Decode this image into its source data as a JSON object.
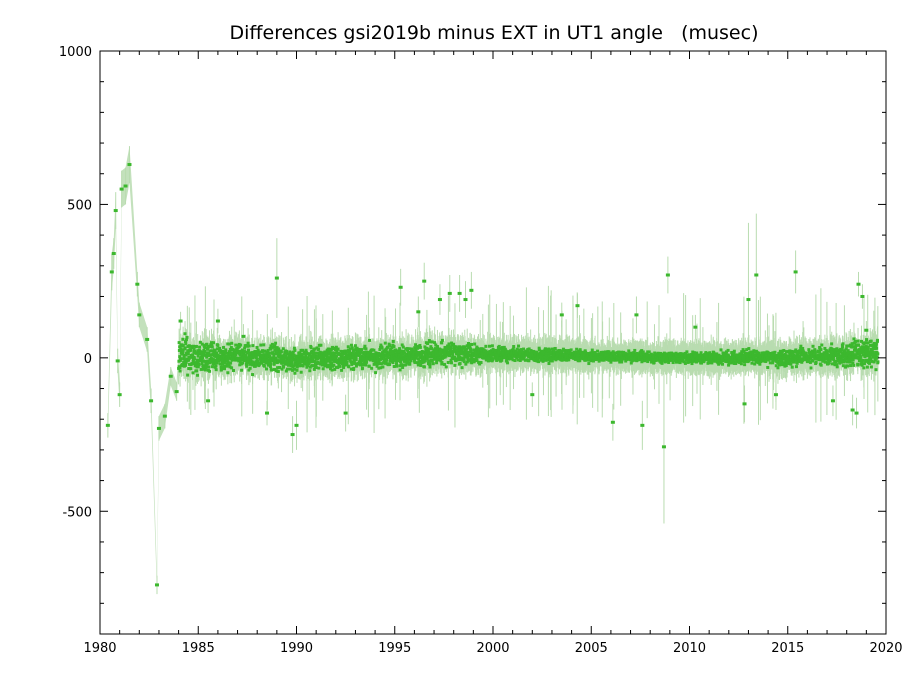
{
  "chart_data": {
    "type": "scatter",
    "title": "Differences gsi2019b minus EXT in UT1 angle   (musec)",
    "xlabel": "",
    "ylabel": "",
    "xlim": [
      1980,
      2020
    ],
    "ylim": [
      -900,
      1000
    ],
    "x_ticks": [
      1980,
      1985,
      1990,
      1995,
      2000,
      2005,
      2010,
      2015,
      2020
    ],
    "y_ticks": [
      -500,
      0,
      500,
      1000
    ],
    "grid": false,
    "colors": {
      "points": "#3cb82e",
      "error_bars": "#b9dcb0",
      "axes": "#000000"
    },
    "series": [
      {
        "values": [
          {
            "x": 1980.4,
            "y": -220,
            "err": 40
          },
          {
            "x": 1980.6,
            "y": 280,
            "err": 60
          },
          {
            "x": 1980.7,
            "y": 340,
            "err": 50
          },
          {
            "x": 1980.8,
            "y": 480,
            "err": 60
          },
          {
            "x": 1980.9,
            "y": -10,
            "err": 40
          },
          {
            "x": 1981.0,
            "y": -120,
            "err": 40
          },
          {
            "x": 1981.1,
            "y": 550,
            "err": 60
          },
          {
            "x": 1981.3,
            "y": 560,
            "err": 60
          },
          {
            "x": 1981.5,
            "y": 630,
            "err": 60
          },
          {
            "x": 1981.9,
            "y": 240,
            "err": 40
          },
          {
            "x": 1982.0,
            "y": 140,
            "err": 40
          },
          {
            "x": 1982.4,
            "y": 60,
            "err": 40
          },
          {
            "x": 1982.6,
            "y": -140,
            "err": 40
          },
          {
            "x": 1982.9,
            "y": -740,
            "err": 30
          },
          {
            "x": 1983.0,
            "y": -230,
            "err": 40
          },
          {
            "x": 1983.3,
            "y": -190,
            "err": 40
          },
          {
            "x": 1983.6,
            "y": -60,
            "err": 30
          },
          {
            "x": 1983.9,
            "y": -110,
            "err": 30
          },
          {
            "x": 1984.1,
            "y": 120,
            "err": 30
          },
          {
            "x": 1985.5,
            "y": -140,
            "err": 40
          },
          {
            "x": 1986.0,
            "y": 120,
            "err": 40
          },
          {
            "x": 1987.3,
            "y": 70,
            "err": 40
          },
          {
            "x": 1988.5,
            "y": -180,
            "err": 40
          },
          {
            "x": 1989.0,
            "y": 260,
            "err": 130
          },
          {
            "x": 1989.8,
            "y": -250,
            "err": 60
          },
          {
            "x": 1990.0,
            "y": -220,
            "err": 80
          },
          {
            "x": 1992.5,
            "y": -180,
            "err": 60
          },
          {
            "x": 1995.3,
            "y": 230,
            "err": 60
          },
          {
            "x": 1996.2,
            "y": 150,
            "err": 50
          },
          {
            "x": 1996.5,
            "y": 250,
            "err": 60
          },
          {
            "x": 1997.3,
            "y": 190,
            "err": 50
          },
          {
            "x": 1997.8,
            "y": 210,
            "err": 60
          },
          {
            "x": 1998.3,
            "y": 210,
            "err": 60
          },
          {
            "x": 1998.6,
            "y": 190,
            "err": 60
          },
          {
            "x": 1998.9,
            "y": 220,
            "err": 60
          },
          {
            "x": 2002.0,
            "y": -120,
            "err": 40
          },
          {
            "x": 2003.5,
            "y": 140,
            "err": 40
          },
          {
            "x": 2004.3,
            "y": 170,
            "err": 40
          },
          {
            "x": 2006.1,
            "y": -210,
            "err": 60
          },
          {
            "x": 2007.3,
            "y": 140,
            "err": 60
          },
          {
            "x": 2007.6,
            "y": -220,
            "err": 80
          },
          {
            "x": 2008.7,
            "y": -290,
            "err": 250
          },
          {
            "x": 2008.9,
            "y": 270,
            "err": 60
          },
          {
            "x": 2010.3,
            "y": 100,
            "err": 40
          },
          {
            "x": 2012.8,
            "y": -150,
            "err": 60
          },
          {
            "x": 2013.0,
            "y": 190,
            "err": 250
          },
          {
            "x": 2013.4,
            "y": 270,
            "err": 200
          },
          {
            "x": 2014.4,
            "y": -120,
            "err": 50
          },
          {
            "x": 2015.4,
            "y": 280,
            "err": 70
          },
          {
            "x": 2017.3,
            "y": -140,
            "err": 50
          },
          {
            "x": 2018.3,
            "y": -170,
            "err": 50
          },
          {
            "x": 2018.5,
            "y": -180,
            "err": 50
          },
          {
            "x": 2018.6,
            "y": 240,
            "err": 40
          },
          {
            "x": 2018.8,
            "y": 200,
            "err": 40
          },
          {
            "x": 2019.0,
            "y": 90,
            "err": 30
          }
        ],
        "band": {
          "x_start": 1984.0,
          "x_end": 2019.6,
          "center": [
            {
              "x": 1984.0,
              "y": 10
            },
            {
              "x": 1985.0,
              "y": -5
            },
            {
              "x": 1987.0,
              "y": 5
            },
            {
              "x": 1990.0,
              "y": -5
            },
            {
              "x": 1995.0,
              "y": 5
            },
            {
              "x": 1998.0,
              "y": 15
            },
            {
              "x": 2002.0,
              "y": 10
            },
            {
              "x": 2010.0,
              "y": 0
            },
            {
              "x": 2015.0,
              "y": 0
            },
            {
              "x": 2018.0,
              "y": 10
            },
            {
              "x": 2019.6,
              "y": 20
            }
          ],
          "spread": [
            {
              "x": 1984.0,
              "y": 45
            },
            {
              "x": 1988.0,
              "y": 35
            },
            {
              "x": 1993.0,
              "y": 30
            },
            {
              "x": 1997.0,
              "y": 30
            },
            {
              "x": 2001.0,
              "y": 18
            },
            {
              "x": 2006.0,
              "y": 14
            },
            {
              "x": 2010.0,
              "y": 14
            },
            {
              "x": 2014.0,
              "y": 20
            },
            {
              "x": 2017.0,
              "y": 25
            },
            {
              "x": 2018.5,
              "y": 40
            },
            {
              "x": 2019.6,
              "y": 35
            }
          ],
          "density_per_year": 110,
          "err_scale": 35
        }
      }
    ]
  }
}
